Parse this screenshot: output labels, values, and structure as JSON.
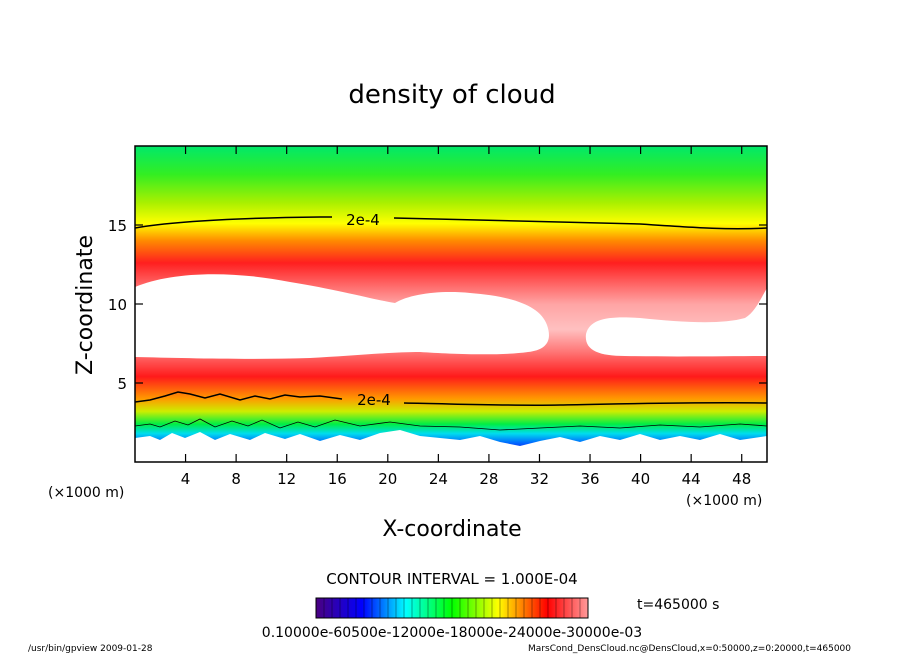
{
  "chart_data": {
    "type": "heatmap",
    "title": "density of cloud",
    "xlabel": "X-coordinate",
    "ylabel": "Z-coordinate",
    "x_unit": "(×1000 m)",
    "z_unit": "(×1000 m)",
    "xlim": [
      0,
      50
    ],
    "ylim": [
      0,
      20
    ],
    "x_ticks": [
      4,
      8,
      12,
      16,
      20,
      24,
      28,
      32,
      36,
      40,
      44,
      48
    ],
    "y_ticks": [
      5,
      10,
      15
    ],
    "contour_labels": [
      {
        "text": "2e-4",
        "x": 17,
        "z": 15.3
      },
      {
        "text": "2e-4",
        "x": 18,
        "z": 3.9
      }
    ],
    "contour_interval": "CONTOUR INTERVAL = 1.000E-04",
    "time_label": "t=465000 s",
    "colorbar_labels_text": "0.10000e-60500e-12000e-18000e-24000e-30000e-03",
    "colorbar_range": [
      0.0001,
      0.0003
    ],
    "colormap": [
      "#4a0080",
      "#0000ff",
      "#00ffff",
      "#00ff00",
      "#ffff00",
      "#ff0000",
      "#ff9a9a"
    ],
    "footer_left": "/usr/bin/gpview   2009-01-28",
    "footer_right": "MarsCond_DensCloud.nc@DensCloud,x=0:50000,z=0:20000,t=465000"
  }
}
